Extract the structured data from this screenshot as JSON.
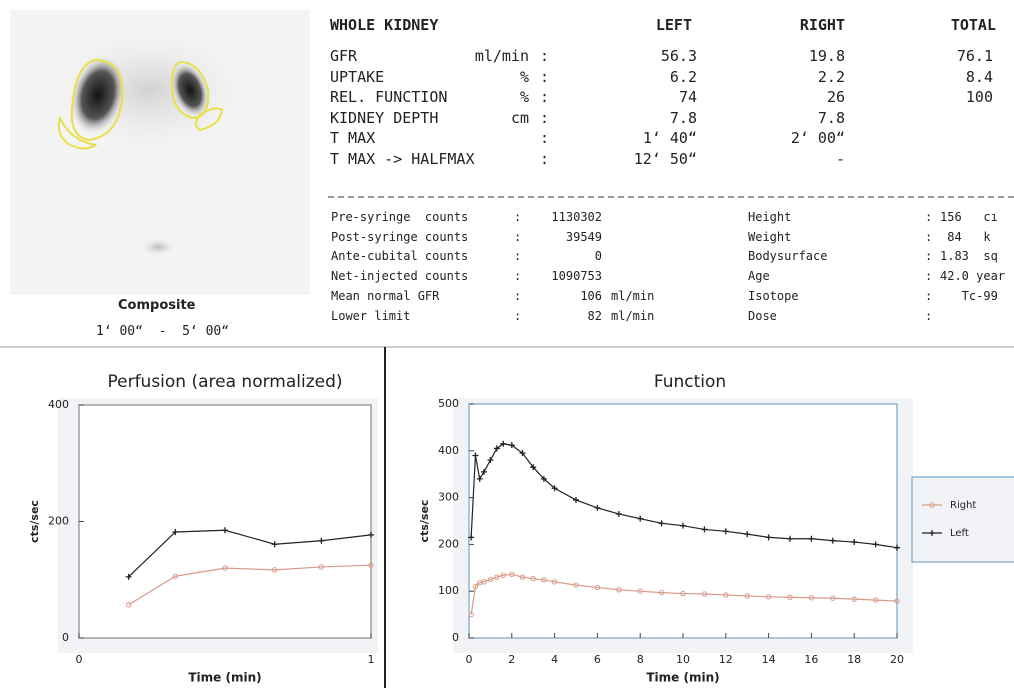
{
  "composite": {
    "caption": "Composite",
    "time_range": "1‘ 00“  -  5‘ 00“"
  },
  "summary": {
    "separator": ":",
    "header": {
      "label": "WHOLE KIDNEY",
      "left": "LEFT",
      "right": "RIGHT",
      "total": "TOTAL"
    },
    "rows": [
      {
        "label": "GFR",
        "unit": "ml/min",
        "left": "56.3",
        "right": "19.8",
        "total": "76.1"
      },
      {
        "label": "UPTAKE",
        "unit": "%",
        "left": "6.2",
        "right": "2.2",
        "total": "8.4"
      },
      {
        "label": "REL. FUNCTION",
        "unit": "%",
        "left": "74",
        "right": "26",
        "total": "100"
      },
      {
        "label": "KIDNEY DEPTH",
        "unit": "cm",
        "left": "7.8",
        "right": "7.8"
      },
      {
        "label": "T MAX",
        "left": "1‘ 40“",
        "right": "2‘ 00“"
      },
      {
        "label": "T MAX -> HALFMAX",
        "left": "12‘ 50“",
        "right": "-"
      }
    ]
  },
  "counts": {
    "left": [
      {
        "label": "Pre-syringe  counts",
        "value": "1130302"
      },
      {
        "label": "Post-syringe counts",
        "value": "39549"
      },
      {
        "label": "Ante-cubital counts",
        "value": "0"
      },
      {
        "label": "Net-injected counts",
        "value": "1090753"
      },
      {
        "label": "Mean normal GFR",
        "value": "106",
        "unit": "ml/min"
      },
      {
        "label": "Lower limit",
        "value": "82",
        "unit": "ml/min"
      }
    ],
    "right": [
      {
        "label": "Height",
        "value": "156   cı"
      },
      {
        "label": "Weight",
        "value": " 84   k"
      },
      {
        "label": "Bodysurface",
        "value": "1.83  sq"
      },
      {
        "label": "Age",
        "value": "42.0 year"
      },
      {
        "label": "Isotope",
        "value": "   Tc-99"
      },
      {
        "label": "Dose"
      }
    ]
  },
  "chart_data": [
    {
      "type": "line",
      "title": "Perfusion (area normalized)",
      "x_label": "Time (min)",
      "y_label": "cts/sec",
      "x": [
        0.17,
        0.33,
        0.5,
        0.67,
        0.83,
        1
      ],
      "xlim": [
        0,
        1
      ],
      "xticks": [
        0,
        1
      ],
      "ylim": [
        0,
        400
      ],
      "yticks": [
        0,
        200,
        400
      ],
      "series": [
        {
          "color": "#222222",
          "marker": "plus",
          "values": [
            105,
            182,
            185,
            161,
            167,
            177
          ]
        },
        {
          "color": "#d99a88",
          "marker": "circle",
          "values": [
            57,
            106,
            120,
            117,
            122,
            125
          ]
        }
      ]
    },
    {
      "type": "line",
      "title": "Function",
      "x_label": "Time (min)",
      "y_label": "cts/sec",
      "legend": "right",
      "x": [
        0.1,
        0.3,
        0.5,
        0.7,
        1,
        1.3,
        1.6,
        2,
        2.5,
        3,
        3.5,
        4,
        5,
        6,
        7,
        8,
        9,
        10,
        11,
        12,
        13,
        14,
        15,
        16,
        17,
        18,
        19,
        20
      ],
      "xlim": [
        0,
        20
      ],
      "xticks": [
        0,
        2,
        4,
        6,
        8,
        10,
        12,
        14,
        16,
        18,
        20
      ],
      "ylim": [
        0,
        500
      ],
      "yticks": [
        0,
        100,
        200,
        300,
        400,
        500
      ],
      "series": [
        {
          "name": "Right",
          "color": "#d99a88",
          "marker": "circle",
          "values": [
            50,
            110,
            118,
            120,
            125,
            130,
            134,
            136,
            130,
            127,
            124,
            120,
            113,
            108,
            103,
            100,
            97,
            95,
            94,
            92,
            90,
            88,
            87,
            86,
            85,
            83,
            81,
            79
          ]
        },
        {
          "name": "Left",
          "color": "#222222",
          "marker": "plus",
          "values": [
            215,
            390,
            340,
            355,
            380,
            405,
            415,
            412,
            395,
            365,
            340,
            320,
            295,
            278,
            265,
            255,
            245,
            240,
            232,
            228,
            222,
            215,
            212,
            212,
            208,
            205,
            200,
            193
          ]
        }
      ]
    }
  ]
}
